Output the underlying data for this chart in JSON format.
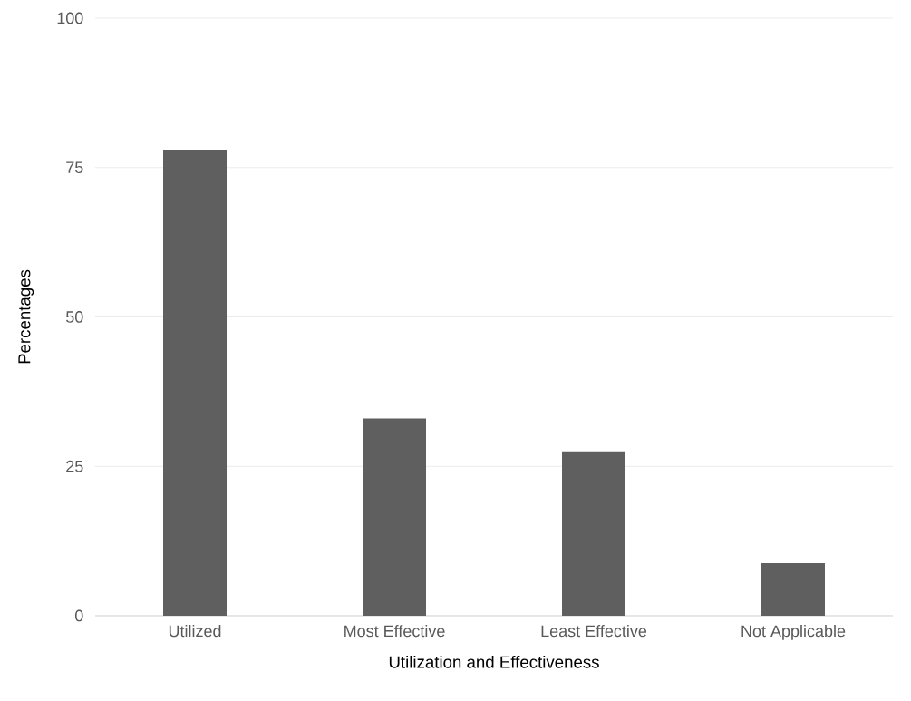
{
  "chart_data": {
    "type": "bar",
    "xlabel": "Utilization and Effectiveness",
    "ylabel": "Percentages",
    "categories": [
      "Utilized",
      "Most Effective",
      "Least Effective",
      "Not Applicable"
    ],
    "values": [
      78,
      33,
      27.5,
      8.8
    ],
    "color": "#5f5f5f",
    "ylim": [
      0,
      100
    ],
    "yticks": [
      0,
      25,
      50,
      75,
      100
    ],
    "grid": "y"
  }
}
